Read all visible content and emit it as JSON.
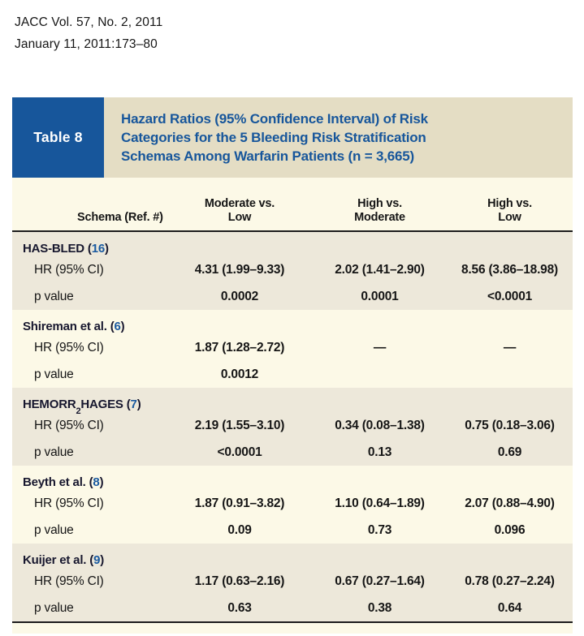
{
  "colors": {
    "accent_blue": "#17569B",
    "title_banner_bg": "#E4DDC4",
    "table_bg_light": "#FCF9E7",
    "table_bg_shaded": "#EDE8DA",
    "rule_black": "#1C1C1C"
  },
  "symbols": {
    "lparen": "(",
    "rparen": ")"
  },
  "citation": {
    "line1": "JACC Vol. 57, No. 2, 2011",
    "line2": "January 11, 2011:173–80"
  },
  "table": {
    "label": "Table 8",
    "title_lines": [
      "Hazard Ratios (95% Confidence Interval) of Risk",
      "Categories for the 5 Bleeding Risk Stratification",
      "Schemas Among Warfarin Patients (n = 3,665)"
    ],
    "columns": [
      {
        "line1": "",
        "line2": "Schema (Ref. #)"
      },
      {
        "line1": "Moderate vs.",
        "line2": "Low"
      },
      {
        "line1": "High vs.",
        "line2": "Moderate"
      },
      {
        "line1": "High vs.",
        "line2": "Low"
      }
    ],
    "row_labels": {
      "hr": "HR (95% CI)",
      "p": "p value"
    },
    "sections": [
      {
        "name_pre": "HAS-BLED",
        "name_sub": "",
        "name_post": "",
        "ref": "16",
        "shaded": true,
        "hr_values": [
          "4.31 (1.99–9.33)",
          "2.02 (1.41–2.90)",
          "8.56 (3.86–18.98)"
        ],
        "p_values": [
          "0.0002",
          "0.0001",
          "<0.0001"
        ]
      },
      {
        "name_pre": "Shireman et al.",
        "name_sub": "",
        "name_post": "",
        "ref": "6",
        "shaded": false,
        "hr_values": [
          "1.87 (1.28–2.72)",
          "—",
          "—"
        ],
        "p_values": [
          "0.0012",
          "",
          ""
        ]
      },
      {
        "name_pre": "HEMORR",
        "name_sub": "2",
        "name_post": "HAGES",
        "ref": "7",
        "shaded": true,
        "hr_values": [
          "2.19 (1.55–3.10)",
          "0.34 (0.08–1.38)",
          "0.75 (0.18–3.06)"
        ],
        "p_values": [
          "<0.0001",
          "0.13",
          "0.69"
        ]
      },
      {
        "name_pre": "Beyth et al.",
        "name_sub": "",
        "name_post": "",
        "ref": "8",
        "shaded": false,
        "hr_values": [
          "1.87 (0.91–3.82)",
          "1.10 (0.64–1.89)",
          "2.07 (0.88–4.90)"
        ],
        "p_values": [
          "0.09",
          "0.73",
          "0.096"
        ]
      },
      {
        "name_pre": "Kuijer et al.",
        "name_sub": "",
        "name_post": "",
        "ref": "9",
        "shaded": true,
        "hr_values": [
          "1.17 (0.63–2.16)",
          "0.67 (0.27–1.64)",
          "0.78 (0.27–2.24)"
        ],
        "p_values": [
          "0.63",
          "0.38",
          "0.64"
        ]
      }
    ]
  }
}
